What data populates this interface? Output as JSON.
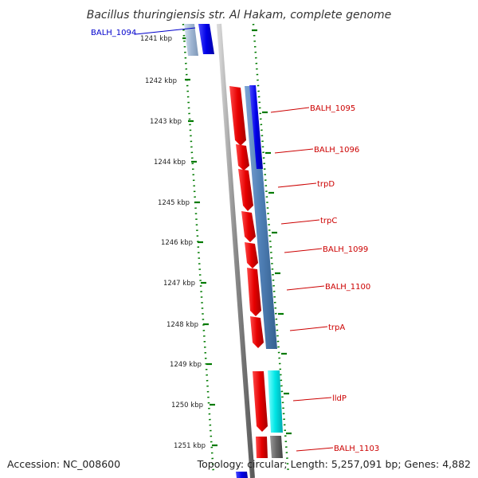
{
  "title": "Bacillus thuringiensis str. Al Hakam, complete genome",
  "footer": {
    "accession": "Accession: NC_008600",
    "summary": "Topology: circular; Length: 5,257,091 bp; Genes: 4,882"
  },
  "ruler": [
    "1241 kbp",
    "1242 kbp",
    "1243 kbp",
    "1244 kbp",
    "1245 kbp",
    "1246 kbp",
    "1247 kbp",
    "1248 kbp",
    "1249 kbp",
    "1250 kbp",
    "1251 kbp"
  ],
  "genes": [
    {
      "label": "BALH_1094",
      "color": "#0000cc"
    },
    {
      "label": "BALH_1095",
      "color": "#cc0000"
    },
    {
      "label": "BALH_1096",
      "color": "#cc0000"
    },
    {
      "label": "trpD",
      "color": "#cc0000"
    },
    {
      "label": "trpC",
      "color": "#cc0000"
    },
    {
      "label": "BALH_1099",
      "color": "#cc0000"
    },
    {
      "label": "BALH_1100",
      "color": "#cc0000"
    },
    {
      "label": "trpA",
      "color": "#cc0000"
    },
    {
      "label": "lldP",
      "color": "#cc0000"
    },
    {
      "label": "BALH_1103",
      "color": "#cc0000"
    }
  ],
  "colors": {
    "backbone": "#8a8a8a",
    "forward_gene": "#e60000",
    "blue_feature": "#0000e6",
    "steel_feature": "#4f7fb5",
    "cyan_feature": "#00e6e6",
    "gray_feature": "#666666",
    "gc_dots": "#007a00"
  }
}
